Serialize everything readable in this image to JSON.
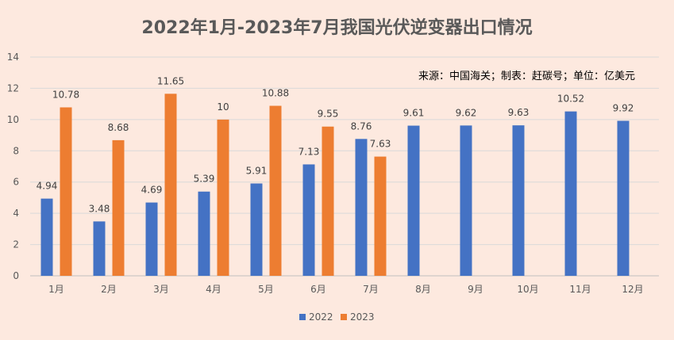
{
  "chart_data": {
    "type": "bar",
    "title": "2022年1月-2023年7月我国光伏逆变器出口情况",
    "source_note": "来源：中国海关；制表：赶碳号；单位：亿美元",
    "categories": [
      "1月",
      "2月",
      "3月",
      "4月",
      "5月",
      "6月",
      "7月",
      "8月",
      "9月",
      "10月",
      "11月",
      "12月"
    ],
    "series": [
      {
        "name": "2022",
        "color": "#4472c4",
        "values": [
          4.94,
          3.48,
          4.69,
          5.39,
          5.91,
          7.13,
          8.76,
          9.61,
          9.62,
          9.63,
          10.52,
          9.92
        ],
        "labels": [
          "4.94",
          "3.48",
          "4.69",
          "5.39",
          "5.91",
          "7.13",
          "8.76",
          "9.61",
          "9.62",
          "9.63",
          "10.52",
          "9.92"
        ]
      },
      {
        "name": "2023",
        "color": "#ed7d31",
        "values": [
          10.78,
          8.68,
          11.65,
          10,
          10.88,
          9.55,
          7.63,
          null,
          null,
          null,
          null,
          null
        ],
        "labels": [
          "10.78",
          "8.68",
          "11.65",
          "10",
          "10.88",
          "9.55",
          "7.63",
          "",
          "",
          "",
          "",
          ""
        ]
      }
    ],
    "y_ticks": [
      "0",
      "2",
      "4",
      "6",
      "8",
      "10",
      "12",
      "14"
    ],
    "ylim": [
      0,
      14
    ],
    "ytick_step": 2,
    "grid": true,
    "legend_position": "bottom-center",
    "xlabel": "",
    "ylabel": ""
  }
}
